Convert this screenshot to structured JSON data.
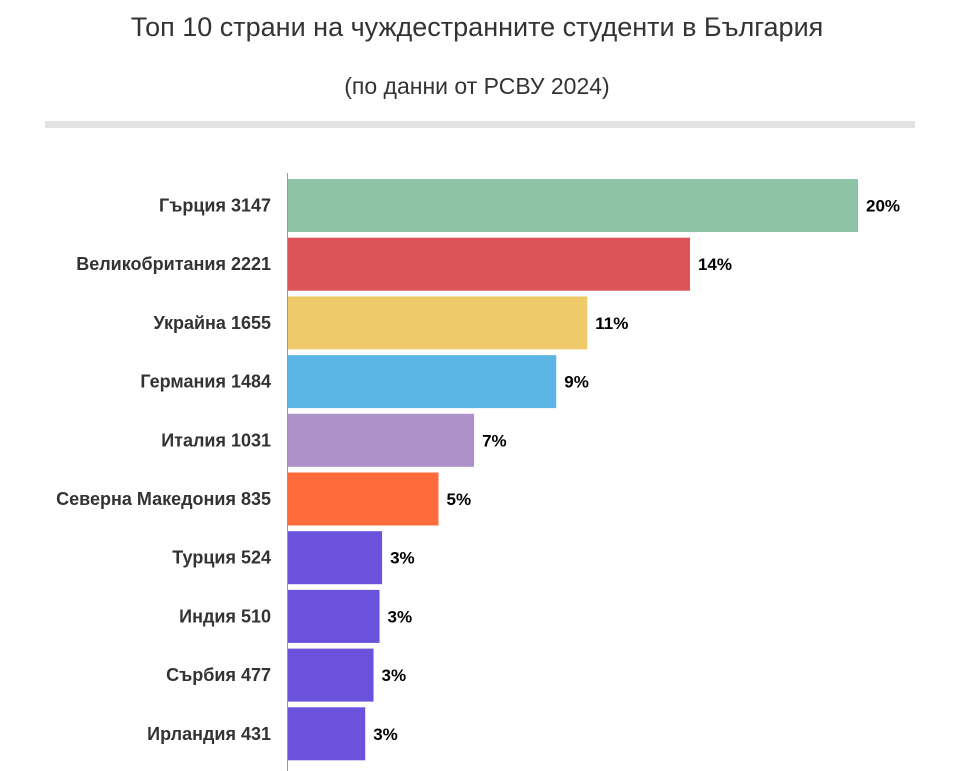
{
  "chart_data": {
    "type": "bar",
    "orientation": "horizontal",
    "title": "Топ 10 страни на чуждестранните студенти в България",
    "subtitle": "(по данни от РСВУ 2024)",
    "categories": [
      "Гърция 3147",
      "Великобритания 2221",
      "Украйна 1655",
      "Германия 1484",
      "Италия 1031",
      "Северна Македония 835",
      "Турция 524",
      "Индия 510",
      "Сърбия 477",
      "Ирландия 431"
    ],
    "values": [
      3147,
      2221,
      1655,
      1484,
      1031,
      835,
      524,
      510,
      477,
      431
    ],
    "data_labels": [
      "20%",
      "14%",
      "11%",
      "9%",
      "7%",
      "5%",
      "3%",
      "3%",
      "3%",
      "3%"
    ],
    "colors": [
      "#8fc3a6",
      "#dc5458",
      "#efca6b",
      "#5db5e5",
      "#ac92c8",
      "#ff6b3a",
      "#6b52dc",
      "#6b52dc",
      "#6b52dc",
      "#6b52dc"
    ],
    "xlim": [
      0,
      3147
    ],
    "grid": false,
    "legend": "none"
  }
}
